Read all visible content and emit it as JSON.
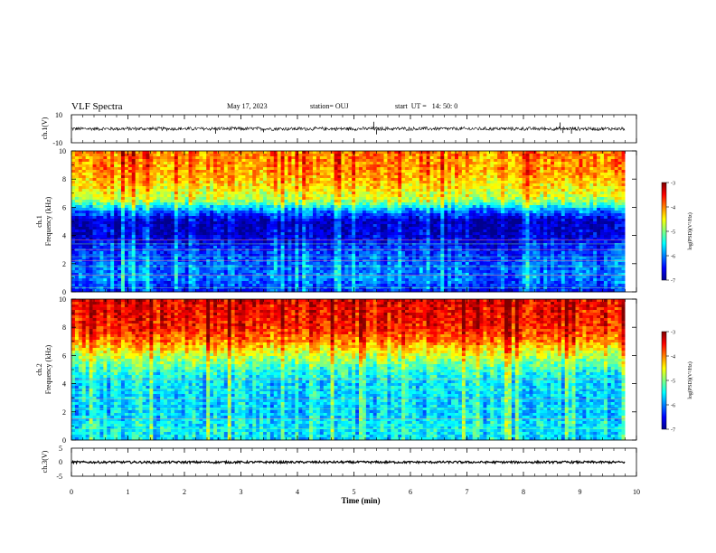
{
  "header": {
    "title": "VLF Spectra",
    "date": "May 17, 2023",
    "station": "station= OUJ",
    "start_ut": "start  UT =   14: 50: 0"
  },
  "colors": {
    "colormap": [
      "#00008f",
      "#0000ff",
      "#0080ff",
      "#00ffff",
      "#80ff80",
      "#ffff00",
      "#ff8000",
      "#ff0000",
      "#800000"
    ],
    "trace": "#000000",
    "frame": "#000000"
  },
  "chart_data": [
    {
      "type": "line",
      "panel": "ch1-waveform",
      "ylabel": "ch.1(V)",
      "ylim": [
        -10,
        10
      ],
      "y_ticklabels": [
        "10",
        "-10"
      ],
      "x_range": [
        0,
        10
      ],
      "x_end_of_data": 9.8,
      "description_values": {
        "baseline": 0,
        "typical_amplitude": 1.5,
        "spikes": [
          {
            "x": 2.55,
            "y": -3.5
          },
          {
            "x": 3.4,
            "y": -2.5
          },
          {
            "x": 5.35,
            "y": 5.0
          },
          {
            "x": 5.4,
            "y": -4.0
          },
          {
            "x": 8.65,
            "y": 4.5
          },
          {
            "x": 8.7,
            "y": -3.0
          },
          {
            "x": 8.85,
            "y": -3.5
          }
        ]
      }
    },
    {
      "type": "heatmap",
      "panel": "ch1-spectrogram",
      "ylabel_line1": "ch.1",
      "ylabel_line2": "Frequency (kHz)",
      "ylim": [
        0,
        10
      ],
      "y_ticklabels": [
        "0",
        "2",
        "4",
        "6",
        "8",
        "10"
      ],
      "x_range": [
        0,
        10
      ],
      "x_end_of_data": 9.8,
      "colorbar": {
        "label": "log(PSD)(V²/Hz)",
        "range": [
          -7,
          -3
        ],
        "ticklabels": [
          "-3",
          "-4",
          "-5",
          "-6",
          "-7"
        ]
      },
      "profile_freq_khz": [
        0,
        1,
        2,
        3,
        4,
        5,
        5.8,
        6.5,
        7.5,
        8.5,
        10
      ],
      "profile_log_psd": [
        -6.4,
        -6.0,
        -6.1,
        -6.3,
        -6.7,
        -6.8,
        -5.9,
        -4.8,
        -4.4,
        -4.1,
        -4.0
      ],
      "tones_khz": [
        0.3,
        1.2,
        1.8,
        2.2,
        2.5,
        3.0,
        3.4,
        3.7
      ]
    },
    {
      "type": "heatmap",
      "panel": "ch2-spectrogram",
      "ylabel_line1": "ch.2",
      "ylabel_line2": "Frequency (kHz)",
      "ylim": [
        0,
        10
      ],
      "y_ticklabels": [
        "0",
        "2",
        "4",
        "6",
        "8",
        "10"
      ],
      "x_range": [
        0,
        10
      ],
      "x_end_of_data": 9.8,
      "colorbar": {
        "label": "log(PSD)(V²/Hz)",
        "range": [
          -7,
          -3
        ],
        "ticklabels": [
          "-3",
          "-4",
          "-5",
          "-6",
          "-7"
        ]
      },
      "profile_freq_khz": [
        0,
        1,
        2,
        3,
        4,
        5,
        6,
        7,
        8,
        9,
        10
      ],
      "profile_log_psd": [
        -5.6,
        -5.5,
        -5.7,
        -5.6,
        -5.6,
        -5.3,
        -4.7,
        -4.0,
        -3.6,
        -3.5,
        -3.4
      ],
      "tones_khz": [
        0.8,
        1.5,
        2.2,
        2.9,
        3.6,
        4.3,
        5.0
      ]
    },
    {
      "type": "line",
      "panel": "ch3-waveform",
      "ylabel": "ch.3(V)",
      "ylim": [
        -5,
        5
      ],
      "y_ticklabels": [
        "5",
        "0",
        "-5"
      ],
      "x_range": [
        0,
        10
      ],
      "x_end_of_data": 9.8,
      "xlabel": "Time  (min)",
      "x_ticklabels": [
        "0",
        "1",
        "2",
        "3",
        "4",
        "5",
        "6",
        "7",
        "8",
        "9",
        "10"
      ],
      "description_values": {
        "baseline": 0,
        "typical_amplitude": 0.4
      }
    }
  ]
}
